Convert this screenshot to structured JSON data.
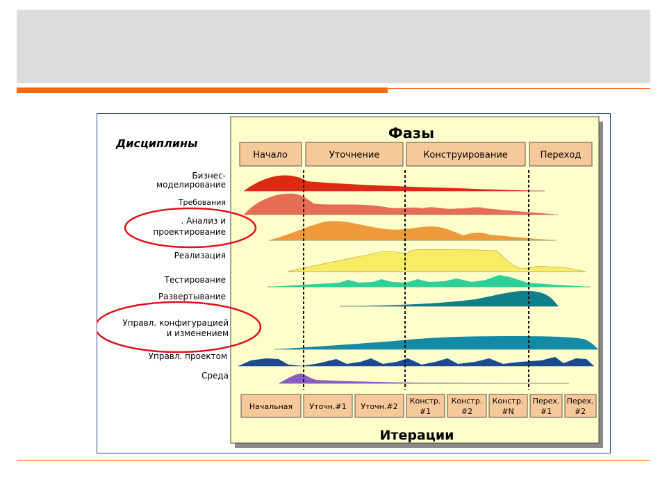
{
  "slide": {
    "accent_color": "#f26a10",
    "title_band_color": "#dcdcdc"
  },
  "diagram": {
    "disciplines_heading": "Дисциплины",
    "phases_heading": "Фазы",
    "iterations_heading": "Итерации",
    "phases": [
      "Начало",
      "Уточнение",
      "Конструирование",
      "Переход"
    ],
    "disciplines": [
      {
        "line1": "Бизнес-",
        "line2": "моделирование"
      },
      {
        "line1": "Требования",
        "line2": ""
      },
      {
        "line1": ". Анализ и",
        "line2": "проектирование"
      },
      {
        "line1": "Реализация",
        "line2": ""
      },
      {
        "line1": "Тестирование",
        "line2": ""
      },
      {
        "line1": "Развертывание",
        "line2": ""
      },
      {
        "line1": "Управл. конфигурацией",
        "line2": "и изменением"
      },
      {
        "line1": "Управл. проектом",
        "line2": ""
      },
      {
        "line1": "Среда",
        "line2": ""
      }
    ],
    "iterations": [
      {
        "line1": "Начальная",
        "line2": ""
      },
      {
        "line1": "Уточн.#1",
        "line2": ""
      },
      {
        "line1": "Уточн.#2",
        "line2": ""
      },
      {
        "line1": "Констр.",
        "line2": "#1"
      },
      {
        "line1": "Констр.",
        "line2": "#2"
      },
      {
        "line1": "Констр.",
        "line2": "#N"
      },
      {
        "line1": "Перех.",
        "line2": "#1"
      },
      {
        "line1": "Перех.",
        "line2": "#2"
      }
    ],
    "highlighted_disciplines": [
      ". Анализ и проектирование",
      "Управл. конфигурацией и изменением"
    ],
    "colors": {
      "panel": "#ffffcc",
      "box": "#f7c99a",
      "circle": "#e0101a",
      "business": "#dd2a12",
      "requirements": "#e46e55",
      "analysis": "#ee9a3c",
      "implementation": "#f8ec64",
      "testing": "#2fcf9a",
      "deployment": "#0f7f8a",
      "config": "#138aa6",
      "project": "#1c4a90",
      "environment": "#8a5bc4"
    }
  }
}
